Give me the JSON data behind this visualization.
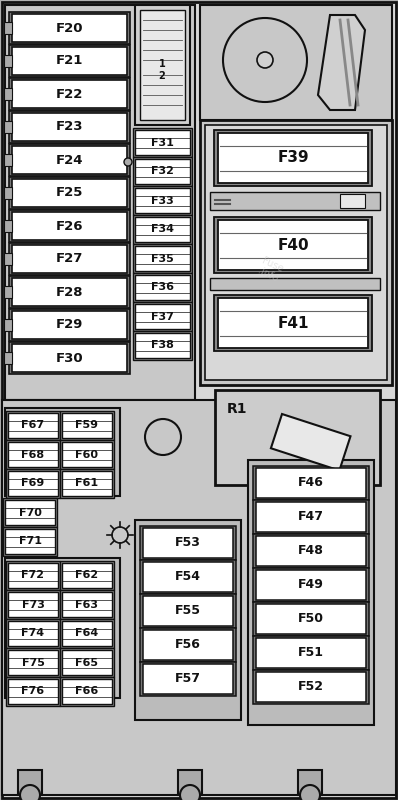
{
  "bg_color": "#b0b0b0",
  "outer_fill": "#d8d8d8",
  "inner_fill": "#f0f0f0",
  "fuse_fill": "#ffffff",
  "fuse_edge": "#111111",
  "panel_edge": "#111111",
  "text_color": "#111111",
  "fig_width": 3.98,
  "fig_height": 8.0,
  "fuses_left": [
    "F20",
    "F21",
    "F22",
    "F23",
    "F24",
    "F25",
    "F26",
    "F27",
    "F28",
    "F29",
    "F30"
  ],
  "fuses_mid": [
    "F31",
    "F32",
    "F33",
    "F34",
    "F35",
    "F36",
    "F37",
    "F38"
  ],
  "fuses_F39_F40_F41": [
    "F39",
    "F40",
    "F41"
  ],
  "fuses_col_a_top": [
    "F67",
    "F68",
    "F69"
  ],
  "fuses_col_b_top": [
    "F59",
    "F60",
    "F61"
  ],
  "fuses_col_a_bot": [
    "F70",
    "F71",
    "F72",
    "F73",
    "F74",
    "F75",
    "F76"
  ],
  "fuses_col_b_bot": [
    "F62",
    "F63",
    "F64",
    "F65",
    "F66"
  ],
  "fuses_col_c": [
    "F53",
    "F54",
    "F55",
    "F56",
    "F57"
  ],
  "fuses_col_d": [
    "F46",
    "F47",
    "F48",
    "F49",
    "F50",
    "F51",
    "F52"
  ],
  "relay_label": "R1"
}
